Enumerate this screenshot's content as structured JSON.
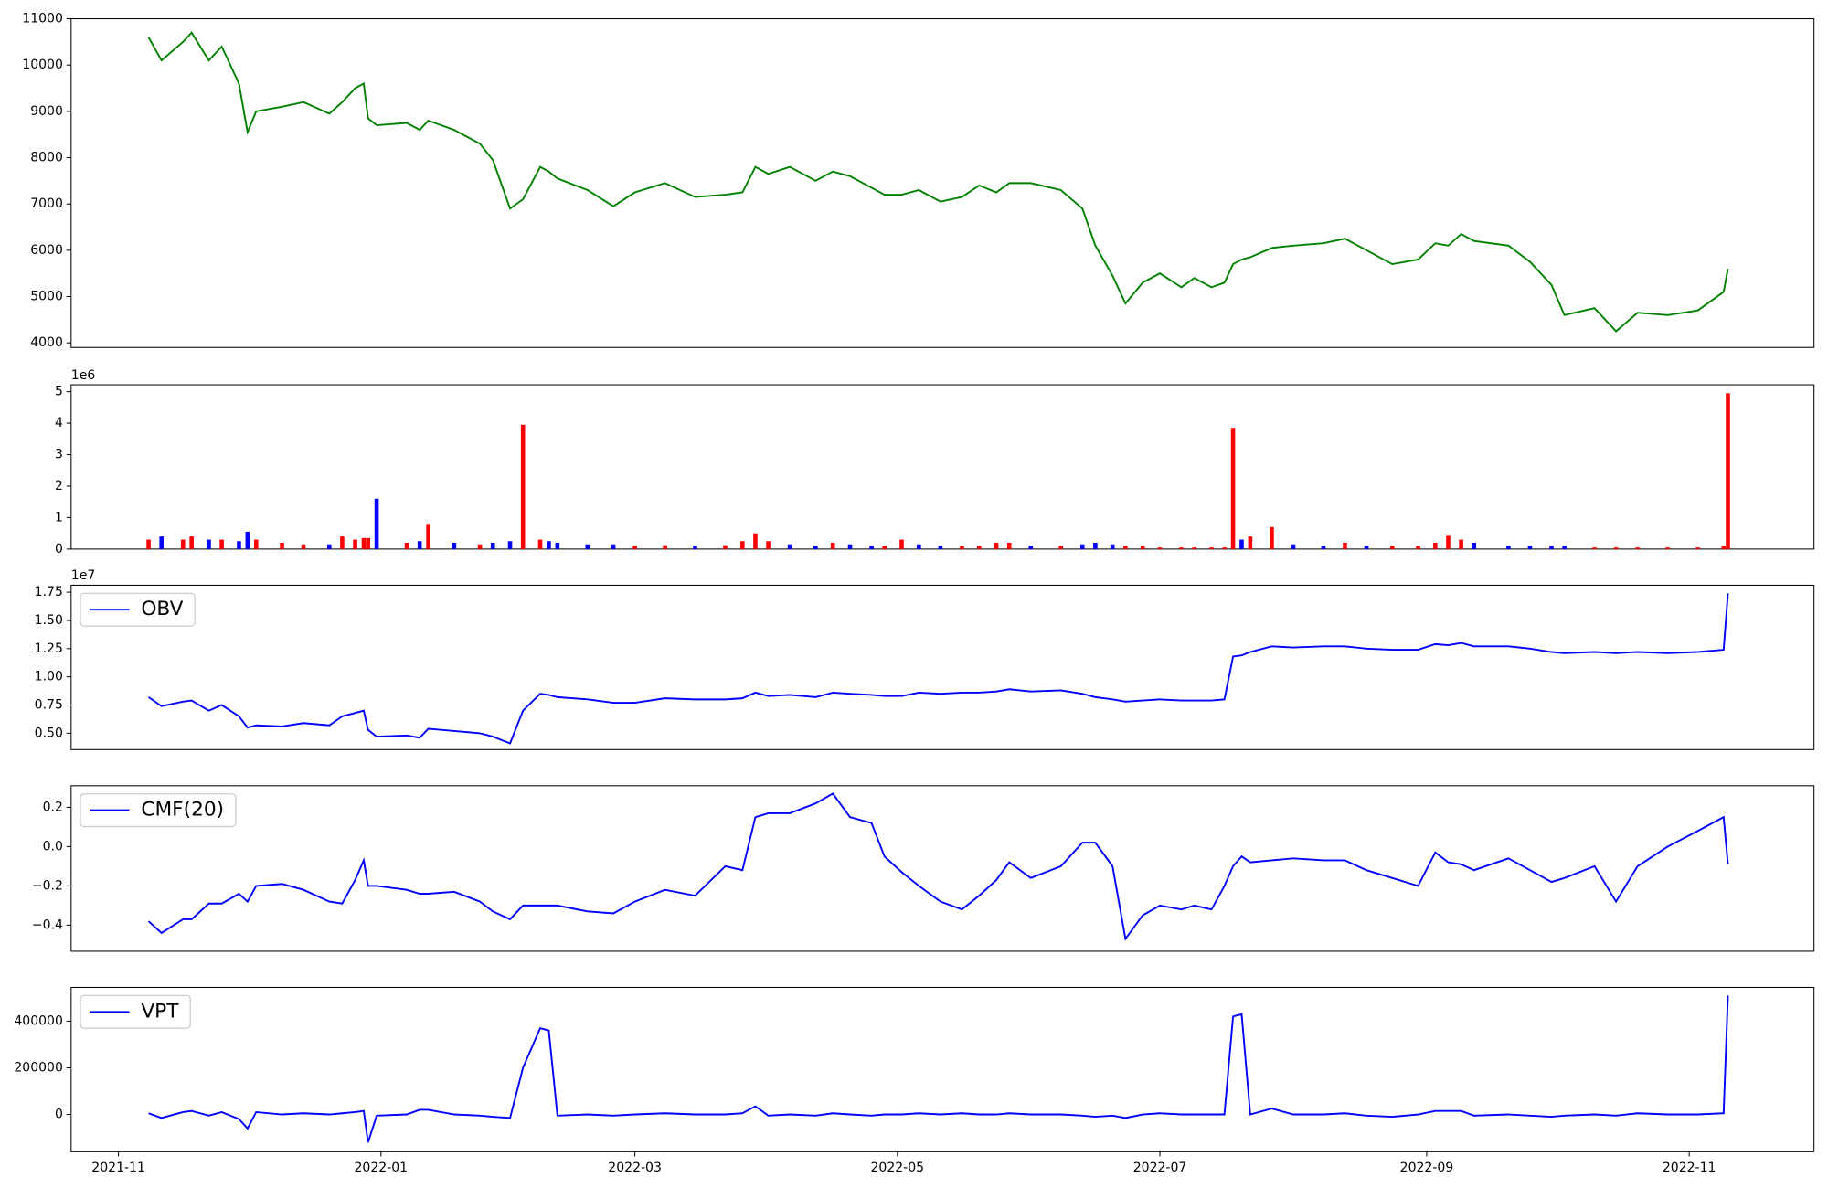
{
  "chart_data": {
    "type": "panels",
    "xlim": [
      "2021-10-21",
      "2022-11-30"
    ],
    "xticks": [
      {
        "value": "2021-11-01",
        "label": "2021-11"
      },
      {
        "value": "2022-01-01",
        "label": "2022-01"
      },
      {
        "value": "2022-03-01",
        "label": "2022-03"
      },
      {
        "value": "2022-05-01",
        "label": "2022-05"
      },
      {
        "value": "2022-07-01",
        "label": "2022-07"
      },
      {
        "value": "2022-09-01",
        "label": "2022-09"
      },
      {
        "value": "2022-11-01",
        "label": "2022-11"
      }
    ],
    "x": [
      "2021-11-08",
      "2021-11-11",
      "2021-11-16",
      "2021-11-18",
      "2021-11-22",
      "2021-11-25",
      "2021-11-29",
      "2021-12-01",
      "2021-12-03",
      "2021-12-09",
      "2021-12-14",
      "2021-12-20",
      "2021-12-23",
      "2021-12-26",
      "2021-12-28",
      "2021-12-29",
      "2021-12-31",
      "2022-01-07",
      "2022-01-10",
      "2022-01-12",
      "2022-01-18",
      "2022-01-24",
      "2022-01-27",
      "2022-01-31",
      "2022-02-03",
      "2022-02-07",
      "2022-02-09",
      "2022-02-11",
      "2022-02-18",
      "2022-02-24",
      "2022-03-01",
      "2022-03-08",
      "2022-03-15",
      "2022-03-22",
      "2022-03-26",
      "2022-03-29",
      "2022-04-01",
      "2022-04-06",
      "2022-04-12",
      "2022-04-16",
      "2022-04-20",
      "2022-04-25",
      "2022-04-28",
      "2022-05-02",
      "2022-05-06",
      "2022-05-11",
      "2022-05-16",
      "2022-05-20",
      "2022-05-24",
      "2022-05-27",
      "2022-06-01",
      "2022-06-08",
      "2022-06-13",
      "2022-06-16",
      "2022-06-20",
      "2022-06-23",
      "2022-06-27",
      "2022-07-01",
      "2022-07-06",
      "2022-07-09",
      "2022-07-13",
      "2022-07-16",
      "2022-07-18",
      "2022-07-20",
      "2022-07-22",
      "2022-07-27",
      "2022-08-01",
      "2022-08-08",
      "2022-08-13",
      "2022-08-18",
      "2022-08-24",
      "2022-08-30",
      "2022-09-03",
      "2022-09-06",
      "2022-09-09",
      "2022-09-12",
      "2022-09-20",
      "2022-09-25",
      "2022-09-30",
      "2022-10-03",
      "2022-10-10",
      "2022-10-15",
      "2022-10-20",
      "2022-10-27",
      "2022-11-03",
      "2022-11-09",
      "2022-11-10"
    ],
    "panels": [
      {
        "type": "line",
        "ylim": [
          3900,
          11000
        ],
        "yticks": [
          4000,
          5000,
          6000,
          7000,
          8000,
          9000,
          10000,
          11000
        ],
        "series": [
          {
            "color": "#008000",
            "values": [
              10600,
              10100,
              10500,
              10700,
              10100,
              10400,
              9600,
              8550,
              9000,
              9100,
              9200,
              8950,
              9200,
              9500,
              9600,
              8850,
              8700,
              8750,
              8600,
              8800,
              8600,
              8300,
              7950,
              6900,
              7100,
              7800,
              7700,
              7550,
              7300,
              6950,
              7250,
              7450,
              7150,
              7200,
              7250,
              7800,
              7650,
              7800,
              7500,
              7700,
              7600,
              7350,
              7200,
              7200,
              7300,
              7050,
              7150,
              7400,
              7250,
              7450,
              7450,
              7300,
              6900,
              6100,
              5450,
              4850,
              5300,
              5500,
              5200,
              5400,
              5200,
              5300,
              5700,
              5800,
              5850,
              6050,
              6100,
              6150,
              6250,
              6000,
              5700,
              5800,
              6150,
              6100,
              6350,
              6200,
              6100,
              5750,
              5250,
              4600,
              4750,
              4250,
              4650,
              4600,
              4700,
              5100,
              5600
            ]
          }
        ]
      },
      {
        "type": "bar",
        "ylim": [
          0,
          5220000
        ],
        "offset_label": "1e6",
        "yticks": [
          0,
          {
            "value": 1000000,
            "label": "1"
          },
          {
            "value": 2000000,
            "label": "2"
          },
          {
            "value": 3000000,
            "label": "3"
          },
          {
            "value": 4000000,
            "label": "4"
          },
          {
            "value": 5000000,
            "label": "5"
          }
        ],
        "values": [
          300000,
          400000,
          300000,
          400000,
          300000,
          300000,
          250000,
          550000,
          300000,
          200000,
          150000,
          150000,
          400000,
          300000,
          350000,
          350000,
          1600000,
          200000,
          250000,
          800000,
          200000,
          150000,
          200000,
          250000,
          3950000,
          300000,
          250000,
          200000,
          150000,
          150000,
          100000,
          120000,
          100000,
          120000,
          250000,
          500000,
          250000,
          150000,
          100000,
          200000,
          150000,
          100000,
          100000,
          300000,
          150000,
          100000,
          100000,
          100000,
          200000,
          200000,
          100000,
          100000,
          150000,
          200000,
          150000,
          100000,
          100000,
          50000,
          50000,
          50000,
          50000,
          50000,
          3850000,
          300000,
          400000,
          700000,
          150000,
          100000,
          200000,
          100000,
          100000,
          100000,
          200000,
          450000,
          300000,
          200000,
          100000,
          100000,
          100000,
          100000,
          50000,
          50000,
          50000,
          50000,
          50000,
          100000,
          4950000
        ],
        "colors": [
          "#ff0000",
          "#0000ff",
          "#ff0000",
          "#ff0000",
          "#0000ff",
          "#ff0000",
          "#0000ff",
          "#0000ff",
          "#ff0000",
          "#ff0000",
          "#ff0000",
          "#0000ff",
          "#ff0000",
          "#ff0000",
          "#ff0000",
          "#ff0000",
          "#0000ff",
          "#ff0000",
          "#0000ff",
          "#ff0000",
          "#0000ff",
          "#ff0000",
          "#0000ff",
          "#0000ff",
          "#ff0000",
          "#ff0000",
          "#0000ff",
          "#0000ff",
          "#0000ff",
          "#0000ff",
          "#ff0000",
          "#ff0000",
          "#0000ff",
          "#ff0000",
          "#ff0000",
          "#ff0000",
          "#ff0000",
          "#0000ff",
          "#0000ff",
          "#ff0000",
          "#0000ff",
          "#0000ff",
          "#ff0000",
          "#ff0000",
          "#0000ff",
          "#0000ff",
          "#ff0000",
          "#ff0000",
          "#ff0000",
          "#ff0000",
          "#0000ff",
          "#ff0000",
          "#0000ff",
          "#0000ff",
          "#0000ff",
          "#ff0000",
          "#ff0000",
          "#ff0000",
          "#ff0000",
          "#ff0000",
          "#ff0000",
          "#ff0000",
          "#ff0000",
          "#0000ff",
          "#ff0000",
          "#ff0000",
          "#0000ff",
          "#0000ff",
          "#ff0000",
          "#0000ff",
          "#ff0000",
          "#ff0000",
          "#ff0000",
          "#ff0000",
          "#ff0000",
          "#0000ff",
          "#0000ff",
          "#0000ff",
          "#0000ff",
          "#0000ff",
          "#ff0000",
          "#ff0000",
          "#ff0000",
          "#ff0000",
          "#ff0000",
          "#ff0000",
          "#ff0000"
        ]
      },
      {
        "type": "line",
        "ylim": [
          3550000,
          18120000
        ],
        "offset_label": "1e7",
        "legend": "upper left",
        "yticks": [
          {
            "value": 5000000,
            "label": "0.50"
          },
          {
            "value": 7500000,
            "label": "0.75"
          },
          {
            "value": 10000000,
            "label": "1.00"
          },
          {
            "value": 12500000,
            "label": "1.25"
          },
          {
            "value": 15000000,
            "label": "1.50"
          },
          {
            "value": 17500000,
            "label": "1.75"
          }
        ],
        "series": [
          {
            "name": "OBV",
            "color": "#0000ff",
            "values": [
              8200000,
              7400000,
              7800000,
              7900000,
              7000000,
              7500000,
              6500000,
              5500000,
              5700000,
              5600000,
              5900000,
              5700000,
              6500000,
              6800000,
              7000000,
              5300000,
              4700000,
              4800000,
              4600000,
              5400000,
              5200000,
              5000000,
              4700000,
              4100000,
              7000000,
              8500000,
              8400000,
              8200000,
              8000000,
              7700000,
              7700000,
              8100000,
              8000000,
              8000000,
              8100000,
              8600000,
              8300000,
              8400000,
              8200000,
              8600000,
              8500000,
              8400000,
              8300000,
              8300000,
              8600000,
              8500000,
              8600000,
              8600000,
              8700000,
              8900000,
              8700000,
              8800000,
              8500000,
              8200000,
              8000000,
              7800000,
              7900000,
              8000000,
              7900000,
              7900000,
              7900000,
              8000000,
              11800000,
              11900000,
              12200000,
              12700000,
              12600000,
              12700000,
              12700000,
              12500000,
              12400000,
              12400000,
              12900000,
              12800000,
              13000000,
              12700000,
              12700000,
              12500000,
              12200000,
              12100000,
              12200000,
              12100000,
              12200000,
              12100000,
              12200000,
              12400000,
              17400000
            ]
          }
        ]
      },
      {
        "type": "line",
        "ylim": [
          -0.533,
          0.31
        ],
        "legend": "upper left",
        "yticks": [
          {
            "value": -0.4,
            "label": "−0.4"
          },
          {
            "value": -0.2,
            "label": "−0.2"
          },
          {
            "value": 0,
            "label": "0.0"
          },
          {
            "value": 0.2,
            "label": "0.2"
          }
        ],
        "series": [
          {
            "name": "CMF(20)",
            "color": "#0000ff",
            "values": [
              -0.38,
              -0.44,
              -0.37,
              -0.37,
              -0.29,
              -0.29,
              -0.24,
              -0.28,
              -0.2,
              -0.19,
              -0.22,
              -0.28,
              -0.29,
              -0.17,
              -0.07,
              -0.2,
              -0.2,
              -0.22,
              -0.24,
              -0.24,
              -0.23,
              -0.28,
              -0.33,
              -0.37,
              -0.3,
              -0.3,
              -0.3,
              -0.3,
              -0.33,
              -0.34,
              -0.28,
              -0.22,
              -0.25,
              -0.1,
              -0.12,
              0.15,
              0.17,
              0.17,
              0.22,
              0.27,
              0.15,
              0.12,
              -0.05,
              -0.13,
              -0.2,
              -0.28,
              -0.32,
              -0.25,
              -0.17,
              -0.08,
              -0.16,
              -0.1,
              0.02,
              0.02,
              -0.1,
              -0.47,
              -0.35,
              -0.3,
              -0.32,
              -0.3,
              -0.32,
              -0.2,
              -0.1,
              -0.05,
              -0.08,
              -0.07,
              -0.06,
              -0.07,
              -0.07,
              -0.12,
              -0.16,
              -0.2,
              -0.03,
              -0.08,
              -0.09,
              -0.12,
              -0.06,
              -0.12,
              -0.18,
              -0.16,
              -0.1,
              -0.28,
              -0.1,
              0,
              0.08,
              0.15,
              -0.09
            ]
          }
        ]
      },
      {
        "type": "line",
        "ylim": [
          -160000,
          545000
        ],
        "legend": "upper left",
        "yticks": [
          0,
          200000,
          400000
        ],
        "series": [
          {
            "name": "VPT",
            "color": "#0000ff",
            "values": [
              5000,
              -15000,
              10000,
              15000,
              -5000,
              10000,
              -20000,
              -60000,
              10000,
              0,
              5000,
              0,
              5000,
              10000,
              15000,
              -120000,
              -5000,
              0,
              20000,
              20000,
              0,
              -5000,
              -10000,
              -15000,
              200000,
              370000,
              360000,
              -5000,
              0,
              -5000,
              0,
              5000,
              0,
              0,
              5000,
              35000,
              -5000,
              0,
              -5000,
              5000,
              0,
              -5000,
              0,
              0,
              5000,
              0,
              5000,
              0,
              0,
              5000,
              0,
              0,
              -5000,
              -10000,
              -5000,
              -15000,
              0,
              5000,
              0,
              0,
              0,
              0,
              420000,
              430000,
              0,
              25000,
              0,
              0,
              5000,
              -5000,
              -10000,
              0,
              15000,
              15000,
              15000,
              -5000,
              0,
              -5000,
              -10000,
              -5000,
              0,
              -5000,
              5000,
              0,
              0,
              5000,
              510000
            ]
          }
        ]
      }
    ]
  }
}
